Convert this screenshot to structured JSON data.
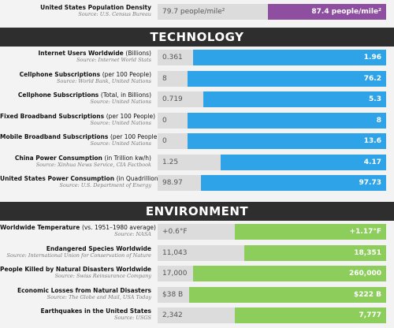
{
  "top_row": {
    "title": "United States Population Density",
    "source": "Source: U.S. Census Bureau",
    "old": "79.7 people/mile²",
    "new": "87.4 people/mile²"
  },
  "sections": [
    {
      "heading": "TECHNOLOGY",
      "rows": [
        {
          "title": "Internet Users Worldwide",
          "qualifier": "(Billions)",
          "source": "Source: Internet World Stats",
          "old": "0.361",
          "new": "1.96"
        },
        {
          "title": "Cellphone Subscriptions",
          "qualifier": "(per 100 People)",
          "source": "Source: World Bank, United Nations",
          "old": "8",
          "new": "76.2"
        },
        {
          "title": "Cellphone Subscriptions",
          "qualifier": "(Total, in Billions)",
          "source": "Source: United Nations",
          "old": "0.719",
          "new": "5.3"
        },
        {
          "title": "Fixed Broadband Subscriptions",
          "qualifier": "(per 100 People)",
          "source": "Source: United Nations",
          "old": "0",
          "new": "8"
        },
        {
          "title": "Mobile Broadband Subscriptions",
          "qualifier": "(per 100 People)",
          "source": "Source: United Nations",
          "old": "0",
          "new": "13.6"
        },
        {
          "title": "China Power Consumption",
          "qualifier": "(in Trillion kw/h)",
          "source": "Source: Xinhua News Service, CIA Factbook",
          "old": "1.25",
          "new": "4.17"
        },
        {
          "title": "United States Power Consumption",
          "qualifier": "(in Quadrillion BTU)",
          "source": "Source: U.S. Department of Energy",
          "old": "98.97",
          "new": "97.73"
        }
      ]
    },
    {
      "heading": "ENVIRONMENT",
      "rows": [
        {
          "title": "Worldwide Temperature",
          "qualifier": "(vs. 1951–1980 average)",
          "source": "Source: NASA",
          "old": "+0.6°F",
          "new": "+1.17°F"
        },
        {
          "title": "Endangered Species Worldwide",
          "source": "Source: International Union for Conservation of Nature",
          "old": "11,043",
          "new": "18,351"
        },
        {
          "title": "People Killed by Natural Disasters Worldwide",
          "source": "Source: Swiss Reinsurance Company",
          "old": "17,000",
          "new": "260,000"
        },
        {
          "title": "Economic Losses from Natural Disasters",
          "source": "Source: The Globe and Mail, USA Today",
          "old": "$38 B",
          "new": "$222 B"
        },
        {
          "title": "Earthquakes in the United States",
          "source": "Source: USGS",
          "old": "2,342",
          "new": "7,777"
        }
      ]
    }
  ]
}
